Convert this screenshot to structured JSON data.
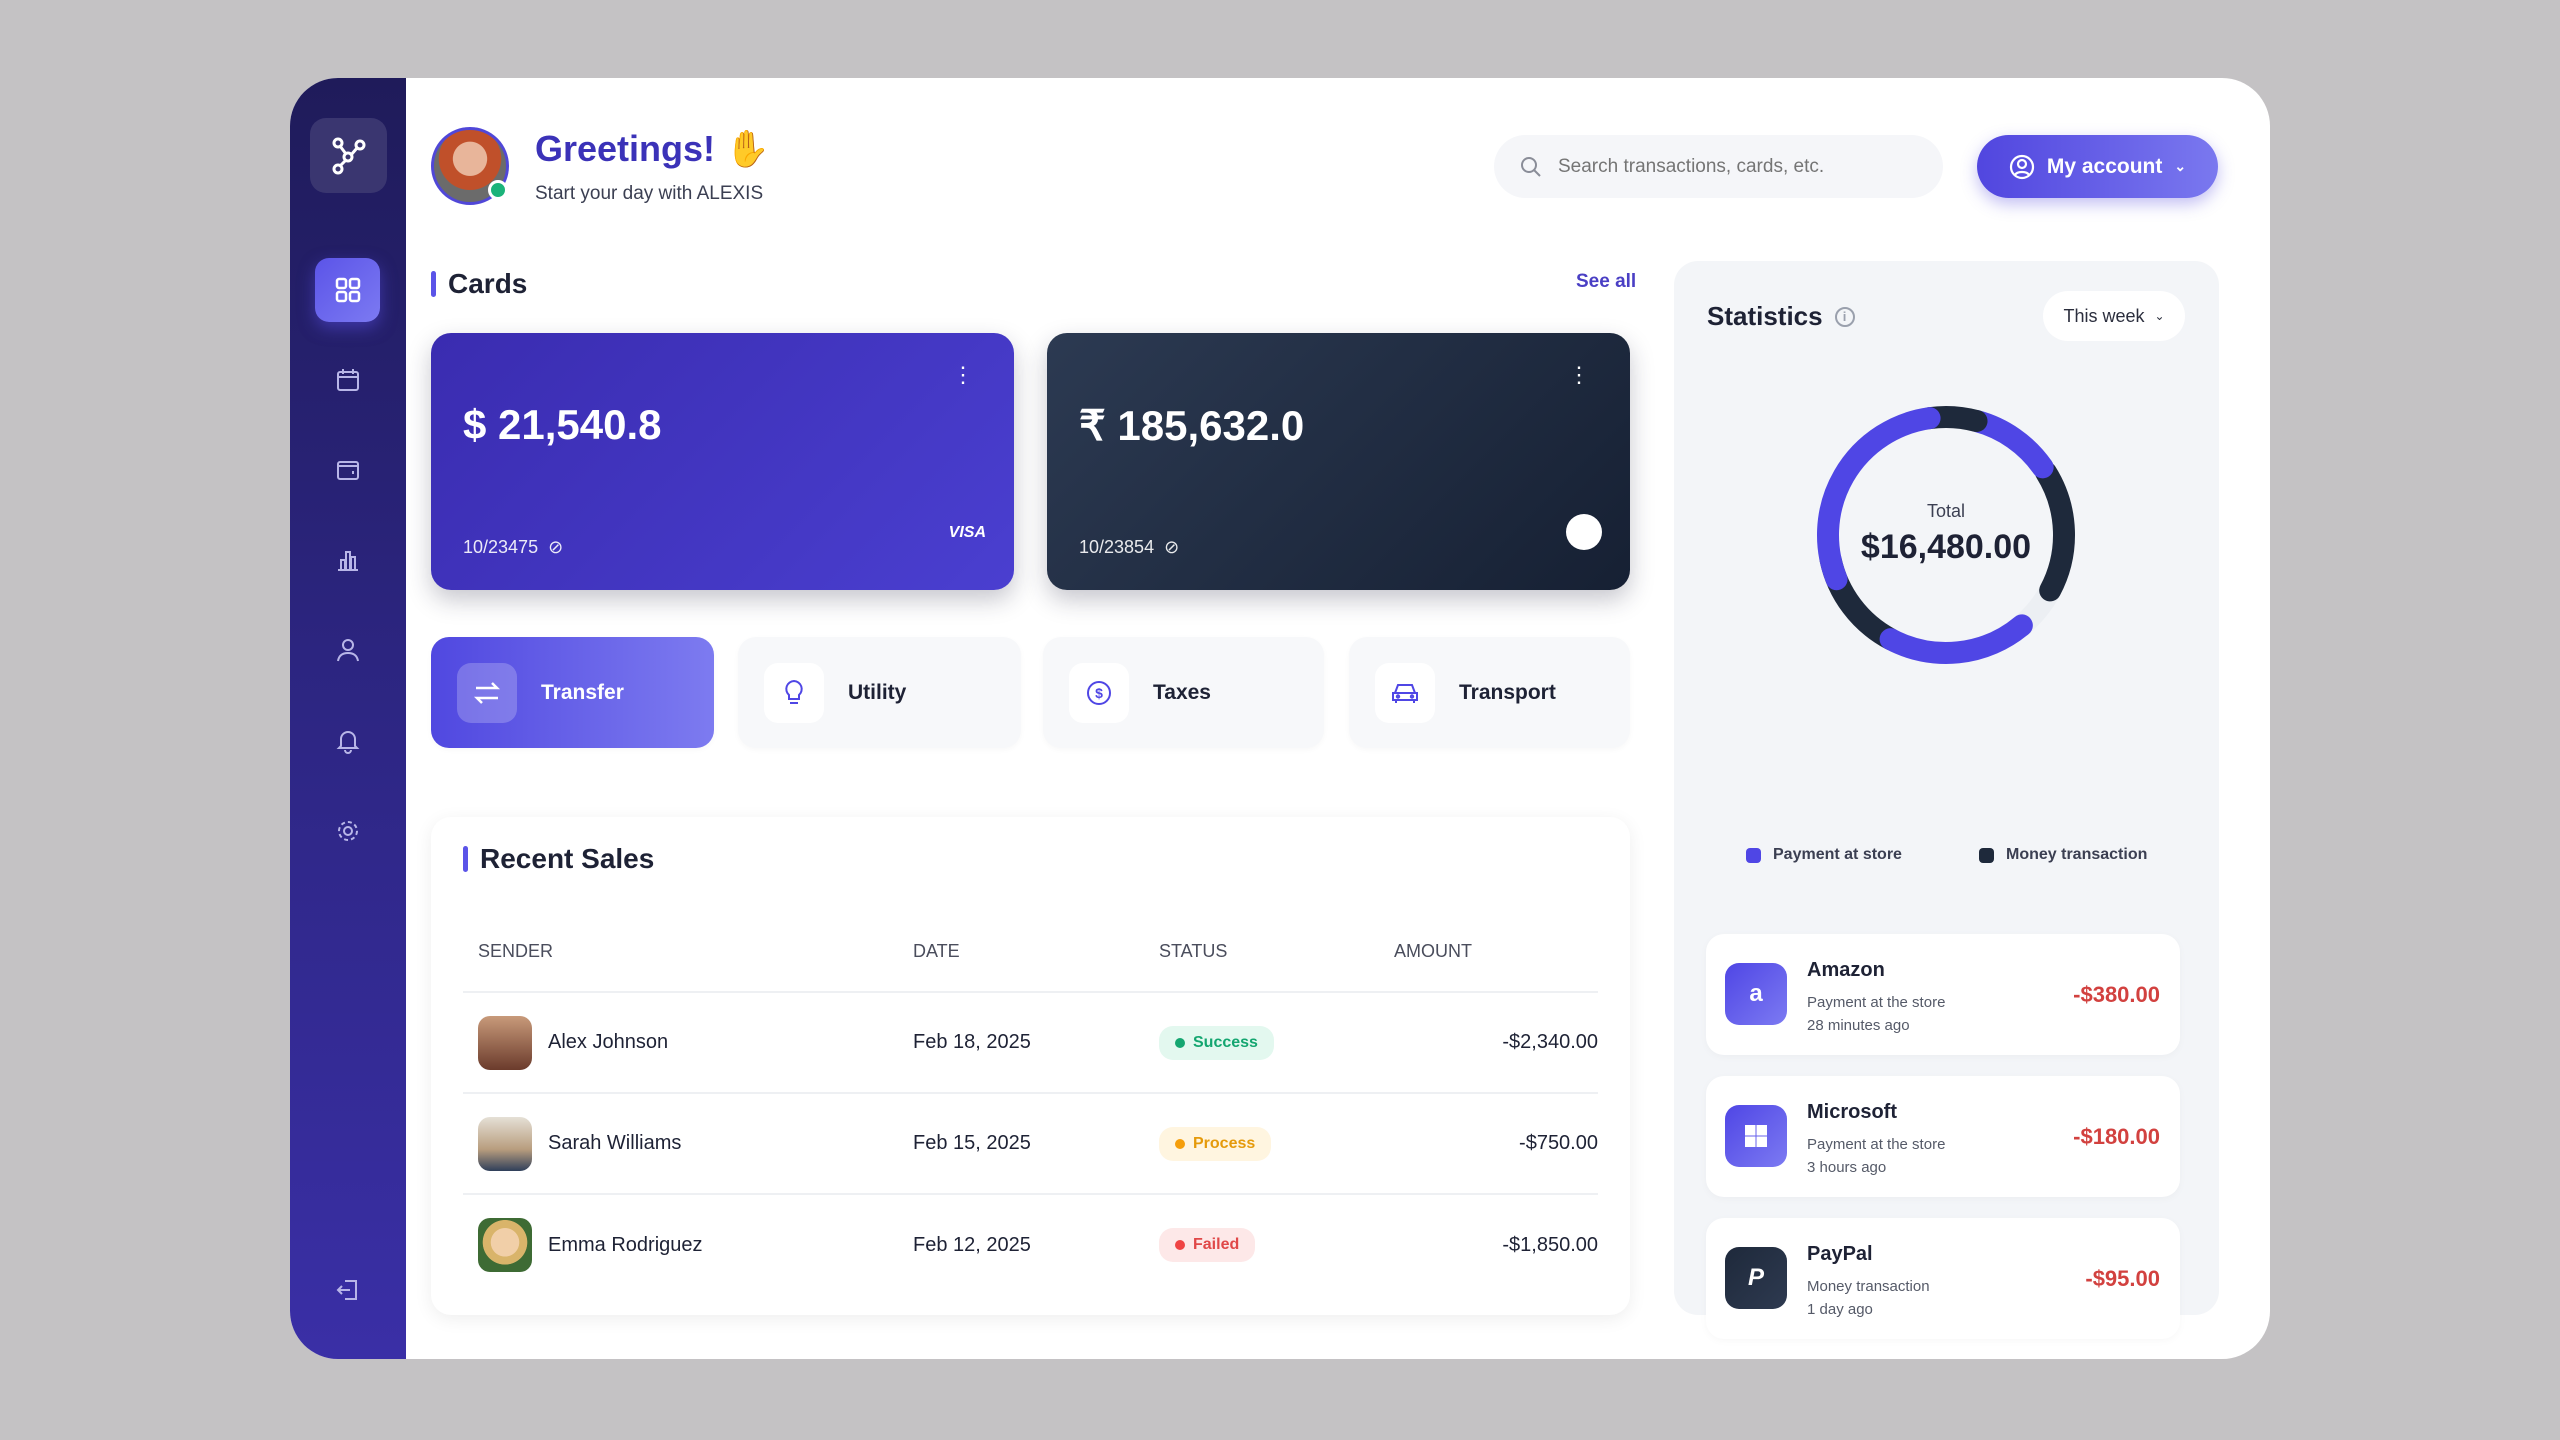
{
  "header": {
    "greeting": "Greetings!",
    "subtitle": "Start your day with ALEXIS",
    "search_placeholder": "Search transactions, cards, etc.",
    "account_label": "My account"
  },
  "sidebar": {
    "items": [
      "dashboard",
      "calendar",
      "wallet",
      "analytics",
      "profile",
      "notifications",
      "settings"
    ],
    "active": "dashboard",
    "logout": "logout"
  },
  "cards": {
    "title": "Cards",
    "see_all": "See all",
    "items": [
      {
        "amount": "$ 21,540.8",
        "number": "10/23475",
        "brand": "VISA"
      },
      {
        "amount": "₹ 185,632.0",
        "number": "10/23854",
        "brand": ""
      }
    ]
  },
  "categories": [
    {
      "label": "Transfer",
      "icon": "transfer-icon",
      "active": true
    },
    {
      "label": "Utility",
      "icon": "lightbulb-icon"
    },
    {
      "label": "Taxes",
      "icon": "dollar-coin-icon"
    },
    {
      "label": "Transport",
      "icon": "car-icon"
    }
  ],
  "sales": {
    "title": "Recent Sales",
    "columns": [
      "SENDER",
      "DATE",
      "STATUS",
      "AMOUNT"
    ],
    "rows": [
      {
        "sender": "Alex Johnson",
        "date": "Feb 18, 2025",
        "status": "Success",
        "amount": "-$2,340.00"
      },
      {
        "sender": "Sarah Williams",
        "date": "Feb 15, 2025",
        "status": "Process",
        "amount": "-$750.00"
      },
      {
        "sender": "Emma Rodriguez",
        "date": "Feb 12, 2025",
        "status": "Failed",
        "amount": "-$1,850.00"
      }
    ]
  },
  "statistics": {
    "title": "Statistics",
    "period": "This week",
    "total_label": "Total",
    "total": "$16,480.00",
    "legend": [
      {
        "label": "Payment at store",
        "color": "#4f46e5"
      },
      {
        "label": "Money transaction",
        "color": "#1e293b"
      }
    ],
    "transactions": [
      {
        "name": "Amazon",
        "type": "Payment at the store",
        "time": "28 minutes ago",
        "amount": "-$380.00"
      },
      {
        "name": "Microsoft",
        "type": "Payment at the store",
        "time": "3 hours ago",
        "amount": "-$180.00"
      },
      {
        "name": "PayPal",
        "type": "Money transaction",
        "time": "1 day ago",
        "amount": "-$95.00"
      }
    ]
  },
  "colors": {
    "accent": "#4f46e5",
    "dark": "#1e293b",
    "negative": "#d2413f",
    "success": "#10b981",
    "process": "#f59e0b",
    "failed": "#ef4444"
  }
}
